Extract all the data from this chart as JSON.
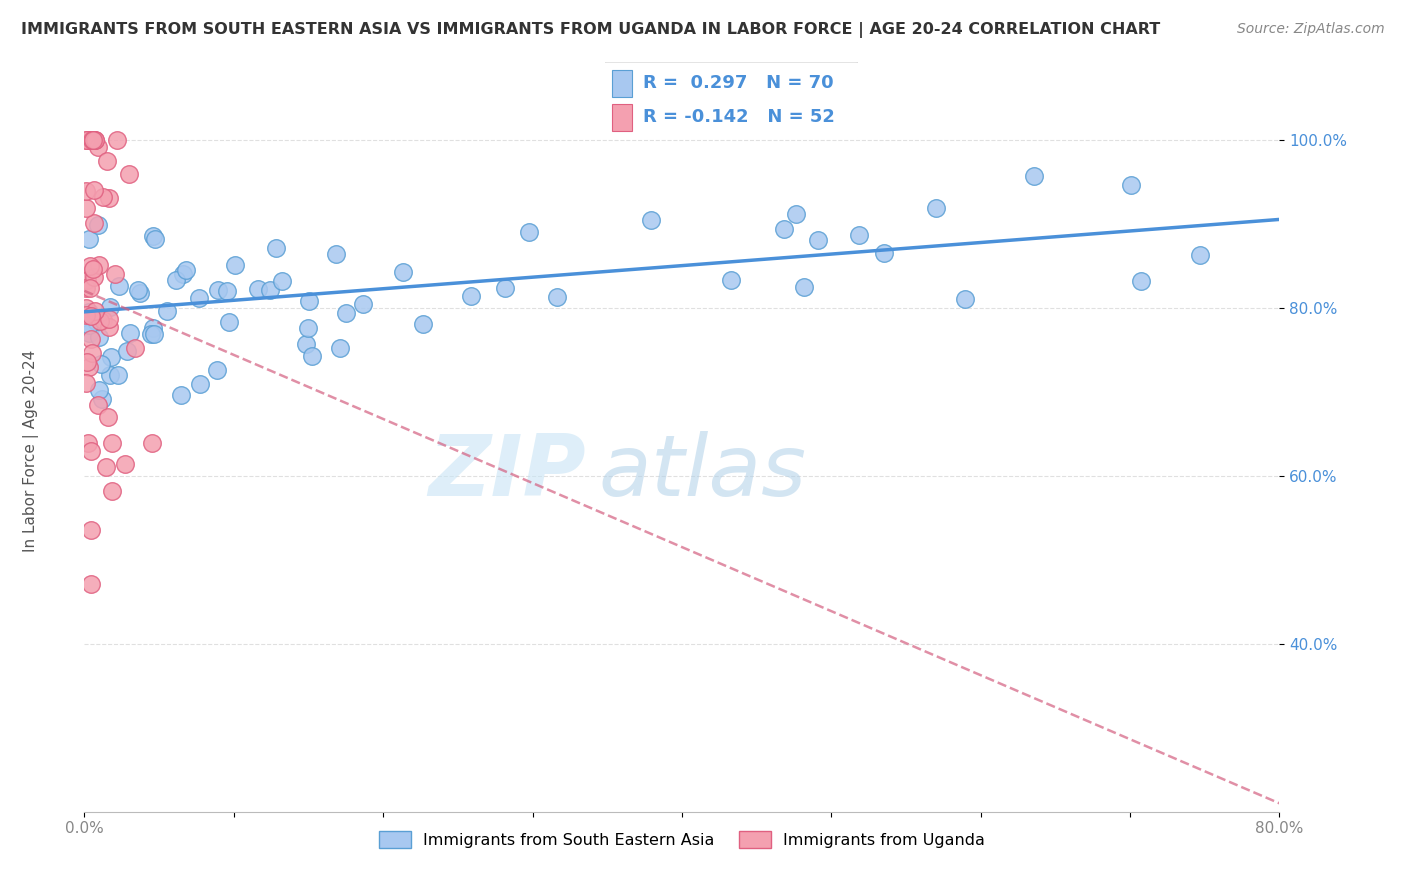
{
  "title": "IMMIGRANTS FROM SOUTH EASTERN ASIA VS IMMIGRANTS FROM UGANDA IN LABOR FORCE | AGE 20-24 CORRELATION CHART",
  "source": "Source: ZipAtlas.com",
  "ylabel": "In Labor Force | Age 20-24",
  "r_sea": 0.297,
  "n_sea": 70,
  "r_uga": -0.142,
  "n_uga": 52,
  "xlim": [
    0.0,
    0.8
  ],
  "ylim": [
    0.2,
    1.06
  ],
  "yticks": [
    0.4,
    0.6,
    0.8,
    1.0
  ],
  "color_sea": "#a8c8f0",
  "color_sea_edge": "#5a9fd4",
  "color_uga": "#f4a0b0",
  "color_uga_edge": "#e06080",
  "color_trendline_sea": "#4a90d9",
  "color_trendline_uga": "#d46080",
  "watermark_zip": "ZIP",
  "watermark_atlas": "atlas",
  "legend_label_sea": "Immigrants from South Eastern Asia",
  "legend_label_uga": "Immigrants from Uganda",
  "sea_trendline_x0": 0.0,
  "sea_trendline_y0": 0.795,
  "sea_trendline_x1": 0.8,
  "sea_trendline_y1": 0.905,
  "uga_trendline_x0": 0.0,
  "uga_trendline_y0": 0.82,
  "uga_trendline_x1": 0.8,
  "uga_trendline_y1": 0.21,
  "background_color": "#ffffff",
  "grid_color": "#cccccc",
  "tick_color_y": "#4a90d9",
  "tick_color_x": "#888888"
}
